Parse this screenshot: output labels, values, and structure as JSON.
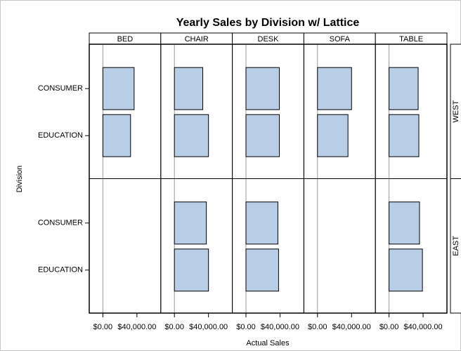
{
  "chart_data": {
    "type": "lattice-hbar",
    "title": "Yearly Sales by Division w/ Lattice",
    "x_label": "Actual Sales",
    "y_label": "Division",
    "columns": [
      "BED",
      "CHAIR",
      "DESK",
      "SOFA",
      "TABLE"
    ],
    "rows": [
      "WEST",
      "EAST"
    ],
    "categories": [
      "CONSUMER",
      "EDUCATION"
    ],
    "values": [
      [
        [
          36700,
          32500
        ],
        [
          33300,
          40000
        ],
        [
          39200,
          39200
        ],
        [
          40000,
          35800
        ],
        [
          34200,
          35000
        ]
      ],
      [
        [
          null,
          null
        ],
        [
          37500,
          40000
        ],
        [
          37500,
          38300
        ],
        [
          null,
          null
        ],
        [
          35800,
          39200
        ]
      ]
    ],
    "color": "#b8cde6",
    "xlim": [
      -16000,
      68000
    ],
    "xticks": [
      {
        "value": 0,
        "label": "$0.00"
      },
      {
        "value": 40000,
        "label": "$40,000.00"
      }
    ]
  }
}
